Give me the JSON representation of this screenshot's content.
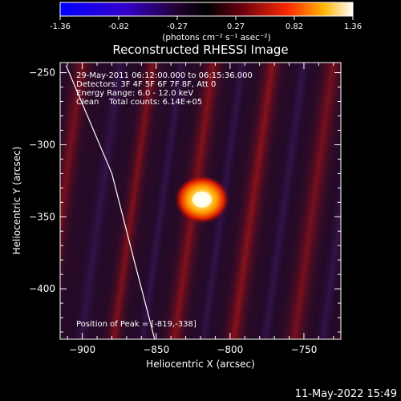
{
  "colorbar": {
    "ticks": [
      "-1.36",
      "-0.82",
      "-0.27",
      "0.27",
      "0.82",
      "1.36"
    ],
    "unit_label": "(photons cm⁻² s⁻¹ asec⁻²)",
    "range": [
      -1.36,
      1.36
    ]
  },
  "chart_data": {
    "type": "heatmap",
    "title": "Reconstructed RHESSI Image",
    "xlabel": "Heliocentric X (arcsec)",
    "ylabel": "Heliocentric Y (arcsec)",
    "xlim": [
      -915,
      -725
    ],
    "ylim": [
      -435,
      -243
    ],
    "xticks": [
      -900,
      -850,
      -800,
      -750
    ],
    "yticks": [
      -250,
      -300,
      -350,
      -400
    ],
    "xtick_labels": [
      "−900",
      "−850",
      "−800",
      "−750"
    ],
    "ytick_labels": [
      "−250",
      "−300",
      "−350",
      "−400"
    ],
    "peak": {
      "x": -819,
      "y": -338
    },
    "info_lines": [
      "29-May-2011 06:12:00.000 to 06:15:36.000",
      "Detectors: 3F 4F 5F 6F 7F 8F, Att 0",
      "Energy Range: 6.0 - 12.0 keV",
      "Clean    Total counts: 6.14E+05"
    ],
    "peak_label": "Position of Peak = [-819,-338]",
    "limb_curve": [
      {
        "x": -911,
        "y": -245
      },
      {
        "x": -880,
        "y": -320
      },
      {
        "x": -865,
        "y": -380
      },
      {
        "x": -851,
        "y": -435
      }
    ]
  },
  "footer": {
    "timestamp": "11-May-2022 15:49"
  }
}
